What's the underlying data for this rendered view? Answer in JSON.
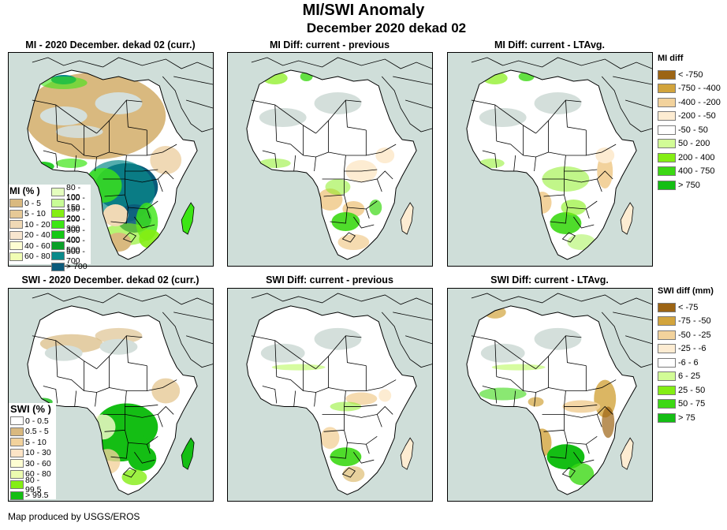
{
  "header": {
    "title": "MI/SWI Anomaly",
    "subtitle": "December 2020 dekad 02"
  },
  "panels": [
    {
      "title": "MI - 2020 December. dekad 02 (curr.)",
      "kind": "mi-current"
    },
    {
      "title": "MI Diff: current - previous",
      "kind": "mi-diff-prev"
    },
    {
      "title": "MI Diff: current - LTAvg.",
      "kind": "mi-diff-lta"
    },
    {
      "title": "SWI - 2020 December. dekad 02 (curr.)",
      "kind": "swi-current"
    },
    {
      "title": "SWI Diff: current - previous",
      "kind": "swi-diff-prev"
    },
    {
      "title": "SWI Diff: current - LTAvg.",
      "kind": "swi-diff-lta"
    }
  ],
  "legends": {
    "mi_percent": {
      "title": "MI (% )",
      "items": [
        {
          "label": "0 - 5",
          "color": "#d9b97f"
        },
        {
          "label": "5 - 10",
          "color": "#e6c996"
        },
        {
          "label": "10 - 20",
          "color": "#f0d9b5"
        },
        {
          "label": "20 - 40",
          "color": "#f8e6cf"
        },
        {
          "label": "40 - 60",
          "color": "#fdfdd2"
        },
        {
          "label": "60 - 80",
          "color": "#f0fdb4"
        },
        {
          "label": "80 - 100",
          "color": "#e4fdbe"
        },
        {
          "label": "100 - 150",
          "color": "#c8fc96"
        },
        {
          "label": "150 - 200",
          "color": "#84ee14"
        },
        {
          "label": "200 - 300",
          "color": "#3ce614"
        },
        {
          "label": "300 - 400",
          "color": "#14c814"
        },
        {
          "label": "400 - 500",
          "color": "#0aa028"
        },
        {
          "label": "500 - 700",
          "color": "#0a8a8a"
        },
        {
          "label": "> 700",
          "color": "#0a5a7a"
        }
      ]
    },
    "mi_diff": {
      "title": "MI diff",
      "items": [
        {
          "label": "< -750",
          "color": "#9c6414"
        },
        {
          "label": "-750 - -400",
          "color": "#d2a43c"
        },
        {
          "label": "-400 - -200",
          "color": "#f2d29c"
        },
        {
          "label": "-200 - -50",
          "color": "#fdecd2"
        },
        {
          "label": "-50 - 50",
          "color": "#ffffff"
        },
        {
          "label": "50 - 200",
          "color": "#d2fc96"
        },
        {
          "label": "200 - 400",
          "color": "#84ee14"
        },
        {
          "label": "400 - 750",
          "color": "#3cd814"
        },
        {
          "label": "> 750",
          "color": "#14be14"
        }
      ]
    },
    "swi_percent": {
      "title": "SWI (% )",
      "items": [
        {
          "label": "0 - 0.5",
          "color": "#ffffff"
        },
        {
          "label": "0.5 - 5",
          "color": "#d9b97f"
        },
        {
          "label": "5 - 10",
          "color": "#f2d29c"
        },
        {
          "label": "10 - 30",
          "color": "#fde4c6"
        },
        {
          "label": "30 - 60",
          "color": "#fdfdd2"
        },
        {
          "label": "60 - 80",
          "color": "#ecfcb0"
        },
        {
          "label": "80 - 99.5",
          "color": "#84ee14"
        },
        {
          "label": "> 99.5",
          "color": "#14be14"
        }
      ]
    },
    "swi_diff": {
      "title": "SWI diff (mm)",
      "items": [
        {
          "label": "< -75",
          "color": "#9c6414"
        },
        {
          "label": "-75 - -50",
          "color": "#d2a43c"
        },
        {
          "label": "-50 - -25",
          "color": "#f2d29c"
        },
        {
          "label": "-25 - -6",
          "color": "#fdecd2"
        },
        {
          "label": "-6 - 6",
          "color": "#ffffff"
        },
        {
          "label": "6 - 25",
          "color": "#d2fc96"
        },
        {
          "label": "25 - 50",
          "color": "#84ee14"
        },
        {
          "label": "50 - 75",
          "color": "#3cd814"
        },
        {
          "label": "> 75",
          "color": "#14be14"
        }
      ]
    }
  },
  "colors": {
    "ocean": "#cfded9",
    "nodata_desert": "#d4dfdb",
    "border": "#000000"
  },
  "footer": "Map produced by USGS/EROS"
}
